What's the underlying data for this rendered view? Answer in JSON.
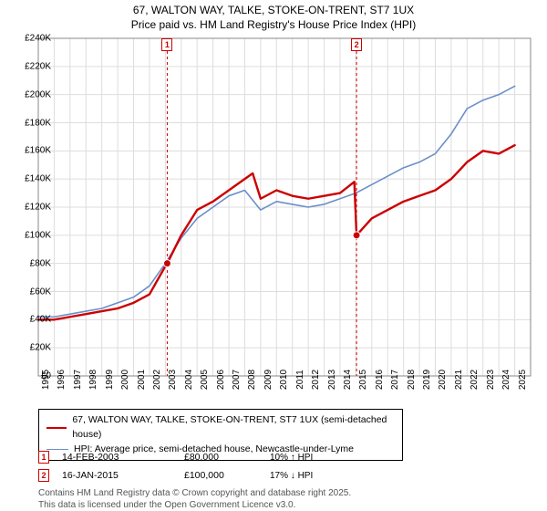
{
  "title_line1": "67, WALTON WAY, TALKE, STOKE-ON-TRENT, ST7 1UX",
  "title_line2": "Price paid vs. HM Land Registry's House Price Index (HPI)",
  "title_fontsize": 12,
  "chart": {
    "type": "line",
    "background_color": "#ffffff",
    "grid_color": "#dddddd",
    "axis_color": "#888888",
    "x_years": [
      1995,
      1996,
      1997,
      1998,
      1999,
      2000,
      2001,
      2002,
      2003,
      2004,
      2005,
      2006,
      2007,
      2008,
      2009,
      2010,
      2011,
      2012,
      2013,
      2014,
      2015,
      2016,
      2017,
      2018,
      2019,
      2020,
      2021,
      2022,
      2023,
      2024,
      2025
    ],
    "xlim": [
      1995,
      2026
    ],
    "ylim": [
      0,
      240000
    ],
    "ytick_step": 20000,
    "ytick_prefix": "£",
    "ytick_suffix": "K",
    "event_line_color": "#cc0000",
    "event_line_dash": "3,3",
    "series": [
      {
        "name": "price_paid",
        "color": "#cc0000",
        "width": 2.4,
        "points": [
          [
            1995,
            40000
          ],
          [
            1996,
            40000
          ],
          [
            1997,
            42000
          ],
          [
            1998,
            44000
          ],
          [
            1999,
            46000
          ],
          [
            2000,
            48000
          ],
          [
            2001,
            52000
          ],
          [
            2002,
            58000
          ],
          [
            2003,
            78000
          ],
          [
            2003.12,
            80000
          ],
          [
            2004,
            100000
          ],
          [
            2005,
            118000
          ],
          [
            2006,
            124000
          ],
          [
            2007,
            132000
          ],
          [
            2008,
            140000
          ],
          [
            2008.5,
            144000
          ],
          [
            2009,
            126000
          ],
          [
            2010,
            132000
          ],
          [
            2011,
            128000
          ],
          [
            2012,
            126000
          ],
          [
            2013,
            128000
          ],
          [
            2014,
            130000
          ],
          [
            2014.9,
            138000
          ],
          [
            2015.04,
            100000
          ],
          [
            2016,
            112000
          ],
          [
            2017,
            118000
          ],
          [
            2018,
            124000
          ],
          [
            2019,
            128000
          ],
          [
            2020,
            132000
          ],
          [
            2021,
            140000
          ],
          [
            2022,
            152000
          ],
          [
            2023,
            160000
          ],
          [
            2024,
            158000
          ],
          [
            2025,
            164000
          ]
        ],
        "markers": [
          {
            "x": 2003.12,
            "y": 80000
          },
          {
            "x": 2015.04,
            "y": 100000
          }
        ]
      },
      {
        "name": "hpi",
        "color": "#6b8fc9",
        "width": 1.6,
        "points": [
          [
            1995,
            42000
          ],
          [
            1996,
            42000
          ],
          [
            1997,
            44000
          ],
          [
            1998,
            46000
          ],
          [
            1999,
            48000
          ],
          [
            2000,
            52000
          ],
          [
            2001,
            56000
          ],
          [
            2002,
            64000
          ],
          [
            2003,
            80000
          ],
          [
            2004,
            98000
          ],
          [
            2005,
            112000
          ],
          [
            2006,
            120000
          ],
          [
            2007,
            128000
          ],
          [
            2008,
            132000
          ],
          [
            2009,
            118000
          ],
          [
            2010,
            124000
          ],
          [
            2011,
            122000
          ],
          [
            2012,
            120000
          ],
          [
            2013,
            122000
          ],
          [
            2014,
            126000
          ],
          [
            2015,
            130000
          ],
          [
            2016,
            136000
          ],
          [
            2017,
            142000
          ],
          [
            2018,
            148000
          ],
          [
            2019,
            152000
          ],
          [
            2020,
            158000
          ],
          [
            2021,
            172000
          ],
          [
            2022,
            190000
          ],
          [
            2023,
            196000
          ],
          [
            2024,
            200000
          ],
          [
            2025,
            206000
          ]
        ]
      }
    ],
    "event_flags": [
      {
        "label": "1",
        "x": 2003.12,
        "color": "#cc0000"
      },
      {
        "label": "2",
        "x": 2015.04,
        "color": "#cc0000"
      }
    ]
  },
  "legend": {
    "items": [
      {
        "color": "#cc0000",
        "label": "67, WALTON WAY, TALKE, STOKE-ON-TRENT, ST7 1UX (semi-detached house)"
      },
      {
        "color": "#6b8fc9",
        "label": "HPI: Average price, semi-detached house, Newcastle-under-Lyme"
      }
    ]
  },
  "events": [
    {
      "num": "1",
      "color": "#cc0000",
      "date": "14-FEB-2003",
      "price": "£80,000",
      "delta": "10% ↑ HPI"
    },
    {
      "num": "2",
      "color": "#cc0000",
      "date": "16-JAN-2015",
      "price": "£100,000",
      "delta": "17% ↓ HPI"
    }
  ],
  "footer_line1": "Contains HM Land Registry data © Crown copyright and database right 2025.",
  "footer_line2": "This data is licensed under the Open Government Licence v3.0."
}
